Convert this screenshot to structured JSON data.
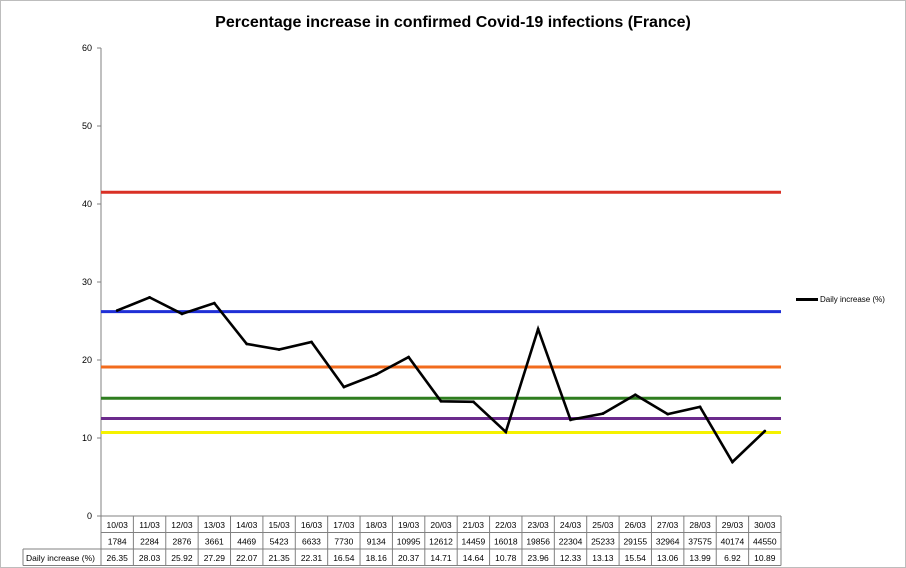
{
  "chart_data": {
    "type": "line",
    "title": "Percentage increase in confirmed Covid-19 infections (France)",
    "xlabel": "",
    "ylabel": "",
    "ylim": [
      0,
      60
    ],
    "yticks": [
      0,
      10,
      20,
      30,
      40,
      50,
      60
    ],
    "grid": false,
    "legend_position": "right",
    "categories": [
      "10/03",
      "11/03",
      "12/03",
      "13/03",
      "14/03",
      "15/03",
      "16/03",
      "17/03",
      "18/03",
      "19/03",
      "20/03",
      "21/03",
      "22/03",
      "23/03",
      "24/03",
      "25/03",
      "26/03",
      "27/03",
      "28/03",
      "29/03",
      "30/03"
    ],
    "table_rows": [
      [
        "1784",
        "2284",
        "2876",
        "3661",
        "4469",
        "5423",
        "6633",
        "7730",
        "9134",
        "10995",
        "12612",
        "14459",
        "16018",
        "19856",
        "22304",
        "25233",
        "29155",
        "32964",
        "37575",
        "40174",
        "44550"
      ]
    ],
    "series": [
      {
        "name": "Daily increase (%)",
        "color": "#000000",
        "values": [
          26.35,
          28.03,
          25.92,
          27.29,
          22.07,
          21.35,
          22.31,
          16.54,
          18.16,
          20.37,
          14.71,
          14.64,
          10.78,
          23.96,
          12.33,
          13.13,
          15.54,
          13.06,
          13.99,
          6.92,
          10.89
        ],
        "labels": [
          "26.35",
          "28.03",
          "25.92",
          "27.29",
          "22.07",
          "21.35",
          "22.31",
          "16.54",
          "18.16",
          "20.37",
          "14.71",
          "14.64",
          "10.78",
          "23.96",
          "12.33",
          "13.13",
          "15.54",
          "13.06",
          "13.99",
          "6.92",
          "10.89"
        ]
      }
    ],
    "reference_lines": [
      {
        "y": 41.5,
        "color": "#d93025"
      },
      {
        "y": 26.2,
        "color": "#1f2fd6"
      },
      {
        "y": 19.1,
        "color": "#f26b1d"
      },
      {
        "y": 15.1,
        "color": "#2e7d1f"
      },
      {
        "y": 12.5,
        "color": "#6b2a8c"
      },
      {
        "y": 10.7,
        "color": "#f5f200"
      }
    ]
  }
}
